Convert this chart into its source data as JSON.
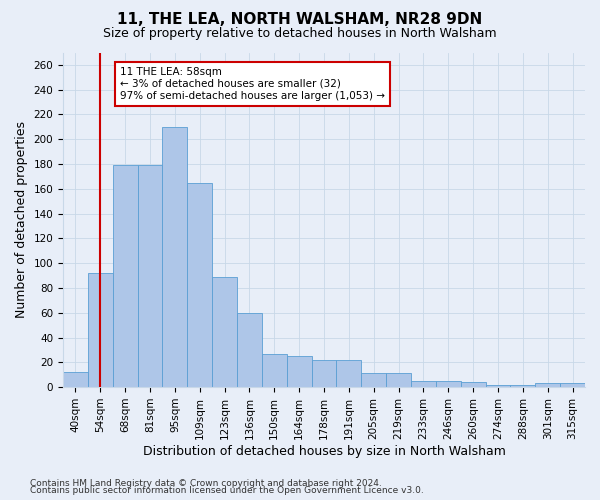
{
  "title": "11, THE LEA, NORTH WALSHAM, NR28 9DN",
  "subtitle": "Size of property relative to detached houses in North Walsham",
  "xlabel": "Distribution of detached houses by size in North Walsham",
  "ylabel": "Number of detached properties",
  "bar_labels": [
    "40sqm",
    "54sqm",
    "68sqm",
    "81sqm",
    "95sqm",
    "109sqm",
    "123sqm",
    "136sqm",
    "150sqm",
    "164sqm",
    "178sqm",
    "191sqm",
    "205sqm",
    "219sqm",
    "233sqm",
    "246sqm",
    "260sqm",
    "274sqm",
    "288sqm",
    "301sqm",
    "315sqm"
  ],
  "bar_values": [
    12,
    92,
    179,
    179,
    210,
    165,
    89,
    60,
    27,
    25,
    22,
    22,
    11,
    11,
    5,
    5,
    4,
    2,
    2,
    3,
    3
  ],
  "bar_color": "#aec6e8",
  "bar_edge_color": "#5a9fd4",
  "vline_color": "#cc0000",
  "vline_x_index": 1.5,
  "annotation_text": "11 THE LEA: 58sqm\n← 3% of detached houses are smaller (32)\n97% of semi-detached houses are larger (1,053) →",
  "annotation_box_color": "#ffffff",
  "annotation_box_edge": "#cc0000",
  "ylim": [
    0,
    270
  ],
  "yticks": [
    0,
    20,
    40,
    60,
    80,
    100,
    120,
    140,
    160,
    180,
    200,
    220,
    240,
    260
  ],
  "grid_color": "#c8d8e8",
  "footer_line1": "Contains HM Land Registry data © Crown copyright and database right 2024.",
  "footer_line2": "Contains public sector information licensed under the Open Government Licence v3.0.",
  "bg_color": "#e8eef8",
  "plot_bg_color": "#e8eef8",
  "title_fontsize": 11,
  "subtitle_fontsize": 9,
  "axis_label_fontsize": 9,
  "tick_fontsize": 7.5,
  "footer_fontsize": 6.5
}
